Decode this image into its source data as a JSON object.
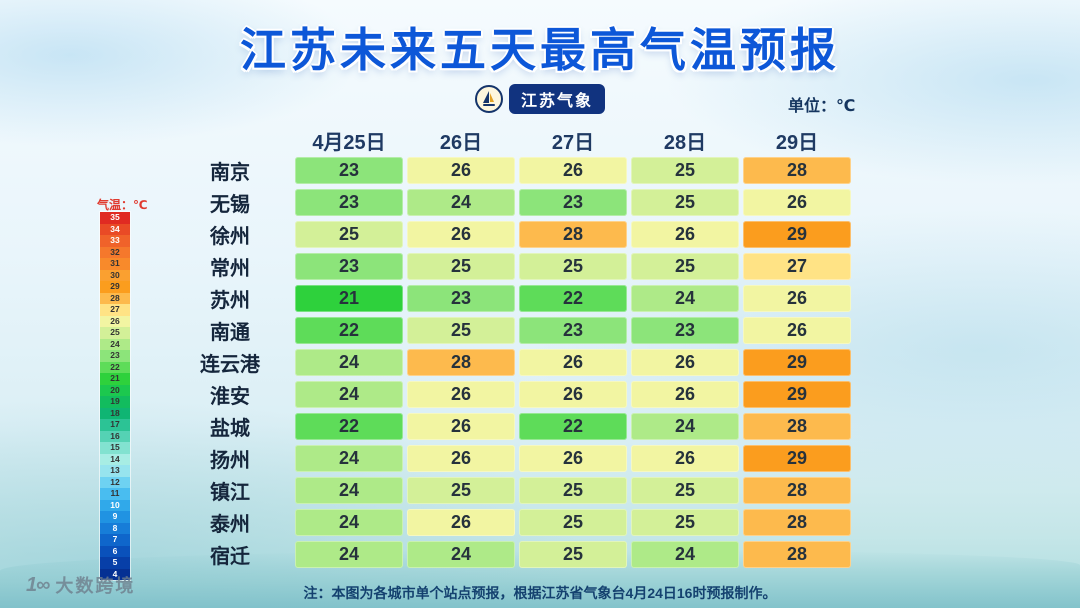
{
  "logo_text": "江苏气象",
  "unit_label": "单位：℃",
  "footer_note": "注：本图为各城市单个站点预报，根据江苏省气象台4月24日16时预报制作。",
  "watermark": {
    "mark": "1∞",
    "text": "大数跨境"
  },
  "accent_colors": {
    "title_blue": "#0d57d8",
    "badge_navy": "#11337f",
    "legend_label_red": "#e03a2f"
  },
  "chart_data": {
    "type": "heatmap",
    "title": "江苏未来五天最高气温预报",
    "unit": "℃",
    "columns": [
      "4月25日",
      "26日",
      "27日",
      "28日",
      "29日"
    ],
    "rows": [
      "南京",
      "无锡",
      "徐州",
      "常州",
      "苏州",
      "南通",
      "连云港",
      "淮安",
      "盐城",
      "扬州",
      "镇江",
      "泰州",
      "宿迁"
    ],
    "values": [
      [
        23,
        26,
        26,
        25,
        28
      ],
      [
        23,
        24,
        23,
        25,
        26
      ],
      [
        25,
        26,
        28,
        26,
        29
      ],
      [
        23,
        25,
        25,
        25,
        27
      ],
      [
        21,
        23,
        22,
        24,
        26
      ],
      [
        22,
        25,
        23,
        23,
        26
      ],
      [
        24,
        28,
        26,
        26,
        29
      ],
      [
        24,
        26,
        26,
        26,
        29
      ],
      [
        22,
        26,
        22,
        24,
        28
      ],
      [
        24,
        26,
        26,
        26,
        29
      ],
      [
        24,
        25,
        25,
        25,
        28
      ],
      [
        24,
        26,
        25,
        25,
        28
      ],
      [
        24,
        24,
        25,
        24,
        28
      ]
    ],
    "color_scale": {
      "21": "#2ed13c",
      "22": "#5edc59",
      "23": "#8ce47a",
      "24": "#aeea88",
      "25": "#d3f098",
      "26": "#f2f5a2",
      "27": "#ffe385",
      "28": "#fdba4d",
      "29": "#fb9d1e"
    },
    "legend": {
      "label": "气温：℃",
      "position": "left",
      "values": [
        35,
        34,
        33,
        32,
        31,
        30,
        29,
        28,
        27,
        26,
        25,
        24,
        23,
        22,
        21,
        20,
        19,
        18,
        17,
        16,
        15,
        14,
        13,
        12,
        11,
        10,
        9,
        8,
        7,
        6,
        5,
        4
      ],
      "colors": [
        "#e02a22",
        "#e94a26",
        "#f0622a",
        "#f5782c",
        "#f88a2b",
        "#faa030",
        "#fb9d1e",
        "#fdba4d",
        "#ffe385",
        "#f2f5a2",
        "#d3f098",
        "#aeea88",
        "#8ce47a",
        "#5edc59",
        "#2ed13c",
        "#1cc84e",
        "#12bc5e",
        "#0fb573",
        "#2cc395",
        "#55d2b4",
        "#82e2d0",
        "#a7ede4",
        "#97e4ee",
        "#6ed2f2",
        "#49bdf0",
        "#30a9ea",
        "#2093e2",
        "#177dd8",
        "#0f66cb",
        "#0a51bb",
        "#073fa8",
        "#053093"
      ]
    }
  }
}
